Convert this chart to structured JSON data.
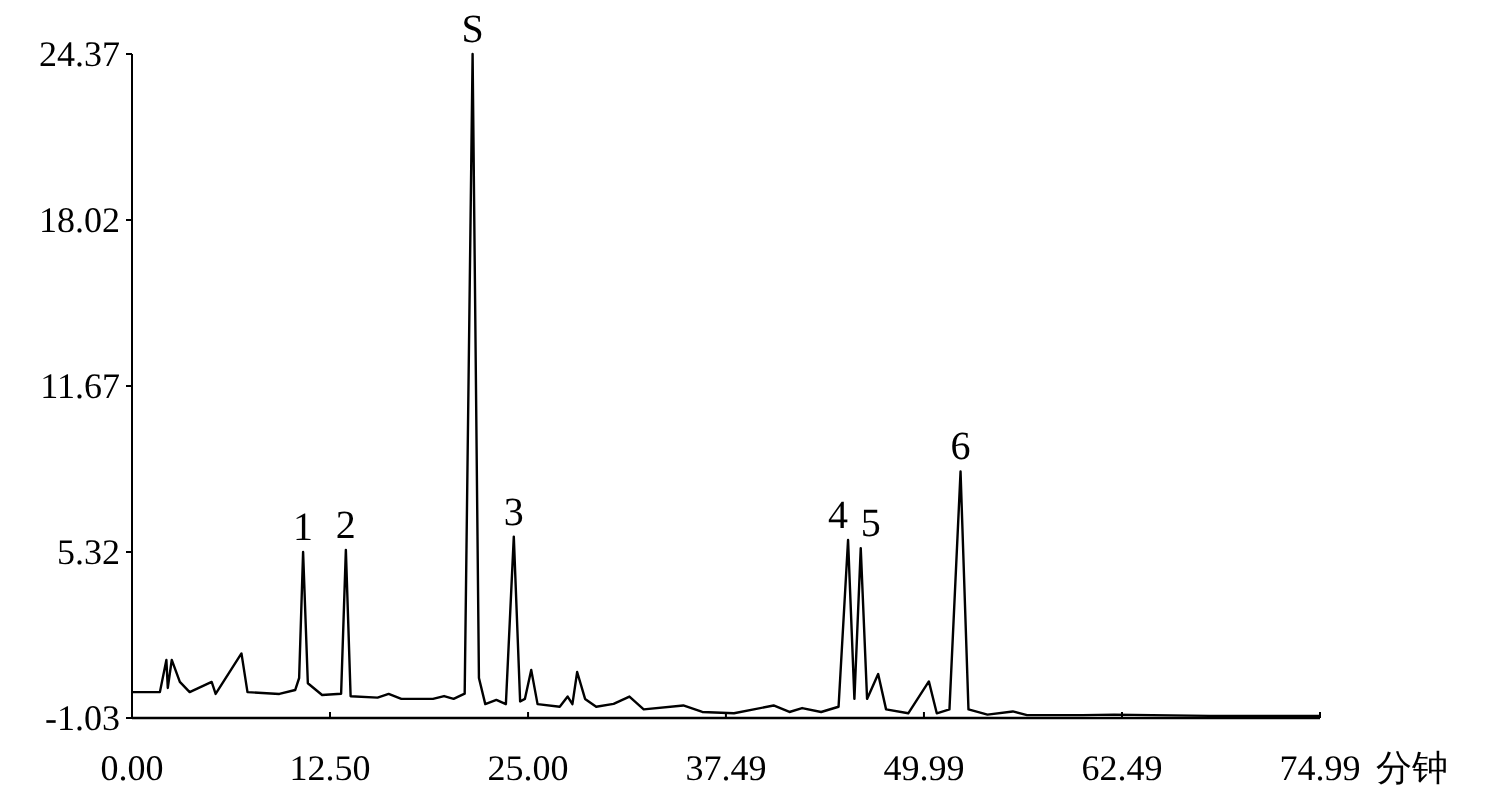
{
  "chart_data": {
    "type": "line",
    "xlabel": "分钟",
    "color": "#000000",
    "x": [
      0,
      1.76,
      2.17,
      2.26,
      2.51,
      3.02,
      3.64,
      5.03,
      5.28,
      6.91,
      7.29,
      9.3,
      10.3,
      10.55,
      10.8,
      11.1,
      12.0,
      13.2,
      13.5,
      13.8,
      15.5,
      16.2,
      17.0,
      19.0,
      19.7,
      20.3,
      21.0,
      21.5,
      21.9,
      22.3,
      23.0,
      23.6,
      24.1,
      24.5,
      24.8,
      25.2,
      25.6,
      27.0,
      27.5,
      27.8,
      28.1,
      28.6,
      29.3,
      30.4,
      31.4,
      32.3,
      34.8,
      36.0,
      38.0,
      40.5,
      41.5,
      42.3,
      43.5,
      44.6,
      45.2,
      45.6,
      46.0,
      46.4,
      47.1,
      47.6,
      49.0,
      50.3,
      50.8,
      51.6,
      52.3,
      52.8,
      54.0,
      55.6,
      56.5,
      60.0,
      62.0,
      68.0,
      74.99
    ],
    "values": [
      -0.04,
      -0.04,
      1.19,
      0.12,
      1.19,
      0.35,
      -0.04,
      0.35,
      -0.11,
      1.44,
      -0.04,
      -0.11,
      0.04,
      0.5,
      5.32,
      0.3,
      -0.15,
      -0.1,
      5.4,
      -0.2,
      -0.25,
      -0.11,
      -0.3,
      -0.3,
      -0.19,
      -0.3,
      -0.1,
      24.37,
      0.5,
      -0.5,
      -0.34,
      -0.5,
      5.91,
      -0.4,
      -0.3,
      0.81,
      -0.5,
      -0.6,
      -0.21,
      -0.5,
      0.73,
      -0.3,
      -0.6,
      -0.49,
      -0.21,
      -0.7,
      -0.55,
      -0.8,
      -0.85,
      -0.55,
      -0.8,
      -0.65,
      -0.8,
      -0.6,
      5.78,
      -0.3,
      5.47,
      -0.3,
      0.65,
      -0.7,
      -0.85,
      0.37,
      -0.85,
      -0.7,
      8.4,
      -0.7,
      -0.9,
      -0.78,
      -0.92,
      -0.92,
      -0.9,
      -0.95,
      -0.95
    ],
    "xlim": [
      0,
      74.99
    ],
    "ylim": [
      -1.03,
      24.37
    ],
    "xticks": [
      {
        "value": 0,
        "label": "0.00"
      },
      {
        "value": 12.5,
        "label": "12.50"
      },
      {
        "value": 25,
        "label": "25.00"
      },
      37.49,
      49.99,
      62.49,
      74.99
    ],
    "yticks": [
      -1.03,
      5.32,
      11.67,
      18.02,
      24.37
    ],
    "annotations": [
      {
        "text": "S",
        "x": 21.5,
        "y": 24.37
      },
      {
        "text": "1",
        "x": 10.8,
        "y": 5.32
      },
      {
        "text": "2",
        "x": 13.5,
        "y": 5.4
      },
      {
        "text": "3",
        "x": 24.1,
        "y": 5.91
      },
      {
        "text": "4",
        "x": 45.2,
        "y": 5.78
      },
      {
        "text": "5",
        "x": 46.0,
        "y": 5.47
      },
      {
        "text": "6",
        "x": 52.3,
        "y": 8.4
      }
    ]
  }
}
